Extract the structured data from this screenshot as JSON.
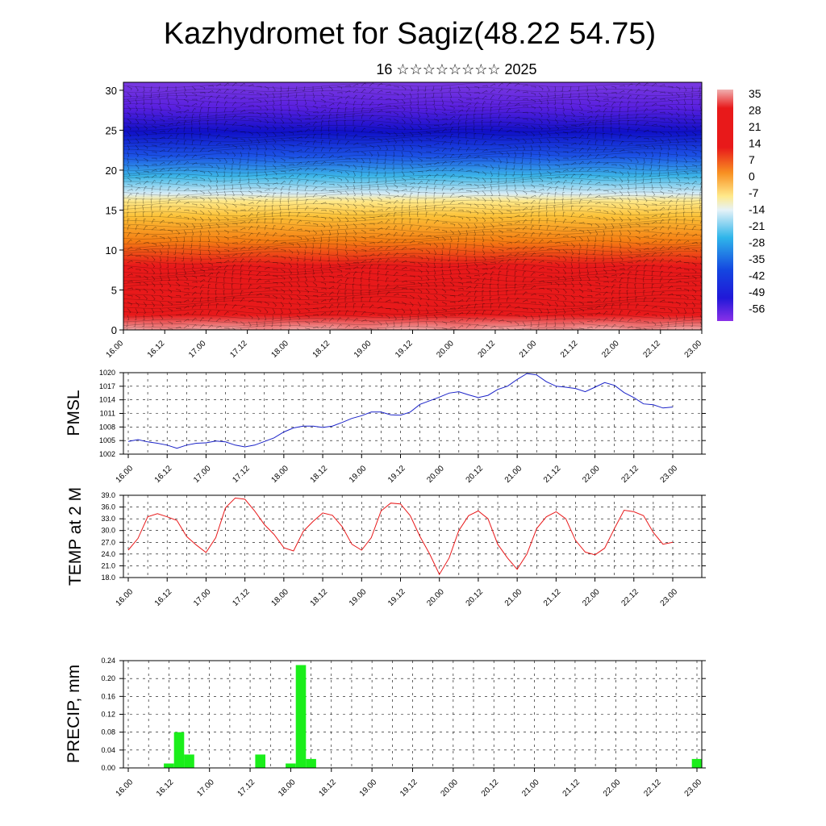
{
  "title": "Kazhydromet for Sagiz(48.22 54.75)",
  "subtitle": "16 ☆☆☆☆☆☆☆☆ 2025",
  "x_ticks": [
    "16.00",
    "16.12",
    "17.00",
    "17.12",
    "18.00",
    "18.12",
    "19.00",
    "19.12",
    "20.00",
    "20.12",
    "21.00",
    "21.12",
    "22.00",
    "22.12",
    "23.00"
  ],
  "chart_data": [
    {
      "type": "heatmap",
      "name": "cross-section",
      "yticks": [
        0,
        5,
        10,
        15,
        20,
        25,
        30
      ],
      "ylim": [
        0,
        31
      ],
      "colorbar_labels": [
        "35",
        "28",
        "21",
        "14",
        "7",
        "0",
        "-7",
        "-14",
        "-21",
        "-28",
        "-35",
        "-42",
        "-49",
        "-56"
      ],
      "colors": {
        "cold": "#7a1fd8",
        "mid": "#ffe88a",
        "warm": "#e8191a",
        "hot": "#f2a3a3"
      }
    },
    {
      "type": "line",
      "ylabel": "PMSL",
      "ylim": [
        1002,
        1020
      ],
      "yticks": [
        "1002",
        "1005",
        "1008",
        "1011",
        "1014",
        "1017",
        "1020"
      ],
      "color": "#1a22c8",
      "values": [
        1004.8,
        1005.2,
        1004.7,
        1004.4,
        1004.0,
        1003.3,
        1004.0,
        1004.4,
        1004.5,
        1004.9,
        1004.7,
        1004.0,
        1003.6,
        1004.0,
        1004.8,
        1005.6,
        1006.9,
        1007.8,
        1008.2,
        1008.2,
        1007.9,
        1008.2,
        1009.0,
        1009.9,
        1010.5,
        1011.3,
        1011.3,
        1010.7,
        1010.6,
        1011.3,
        1013.0,
        1013.8,
        1014.6,
        1015.5,
        1015.8,
        1015.1,
        1014.5,
        1015.0,
        1016.3,
        1017.0,
        1018.5,
        1019.8,
        1019.5,
        1018.0,
        1017.0,
        1016.8,
        1016.5,
        1015.8,
        1016.8,
        1017.8,
        1017.2,
        1015.6,
        1014.5,
        1013.1,
        1012.9,
        1012.2,
        1012.4
      ]
    },
    {
      "type": "line",
      "ylabel": "TEMP at 2 M",
      "ylim": [
        18,
        39
      ],
      "yticks": [
        "18.0",
        "21.0",
        "24.0",
        "27.0",
        "30.0",
        "33.0",
        "36.0",
        "39.0"
      ],
      "color": "#e8191a",
      "values": [
        25.0,
        28.0,
        33.5,
        34.3,
        33.5,
        32.6,
        28.5,
        26.3,
        24.4,
        28.2,
        35.8,
        38.3,
        38.0,
        35.0,
        31.5,
        29.0,
        25.6,
        24.8,
        29.8,
        32.3,
        34.5,
        33.9,
        31.0,
        26.5,
        25.0,
        28.2,
        35.0,
        37.0,
        36.8,
        33.8,
        28.5,
        24.0,
        18.8,
        23.0,
        30.0,
        33.8,
        35.0,
        33.0,
        26.5,
        23.0,
        20.1,
        24.0,
        30.5,
        33.5,
        34.8,
        33.0,
        27.5,
        24.5,
        23.8,
        25.5,
        30.5,
        35.2,
        34.8,
        33.8,
        29.5,
        26.5,
        27.0
      ]
    },
    {
      "type": "bar",
      "ylabel": "PRECIP, mm",
      "ylim": [
        0,
        0.24
      ],
      "yticks": [
        "0.00",
        "0.04",
        "0.08",
        "0.12",
        "0.16",
        "0.20",
        "0.24"
      ],
      "color": "#1aee1a",
      "values": [
        0,
        0,
        0,
        0,
        0.01,
        0.08,
        0.03,
        0,
        0,
        0,
        0,
        0,
        0,
        0.03,
        0,
        0,
        0.01,
        0.23,
        0.02,
        0,
        0,
        0,
        0,
        0,
        0,
        0,
        0,
        0,
        0,
        0,
        0,
        0,
        0,
        0,
        0,
        0,
        0,
        0,
        0,
        0,
        0,
        0,
        0,
        0,
        0,
        0,
        0,
        0,
        0,
        0,
        0,
        0,
        0,
        0,
        0,
        0,
        0.02
      ]
    }
  ]
}
